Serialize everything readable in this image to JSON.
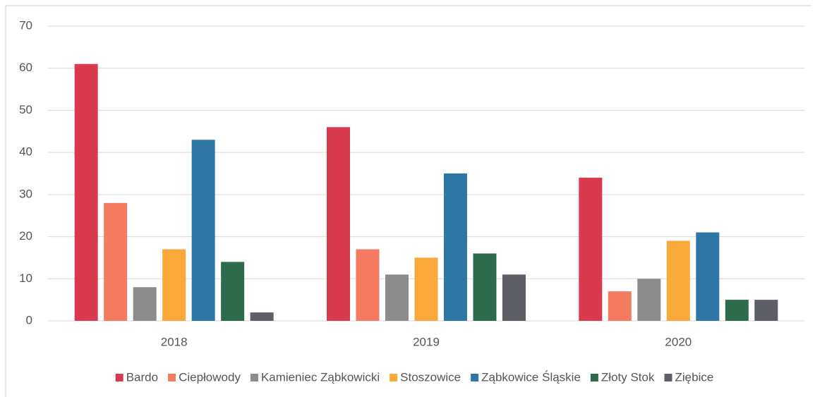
{
  "chart_data": {
    "type": "bar",
    "categories": [
      "2018",
      "2019",
      "2020"
    ],
    "series": [
      {
        "name": "Bardo",
        "color": "#d93a4e",
        "values": [
          61,
          46,
          34
        ]
      },
      {
        "name": "Ciepłowody",
        "color": "#f47a60",
        "values": [
          28,
          17,
          7
        ]
      },
      {
        "name": "Kamieniec Ząbkowicki",
        "color": "#8c8c8c",
        "values": [
          8,
          11,
          10
        ]
      },
      {
        "name": "Stoszowice",
        "color": "#f9a93a",
        "values": [
          17,
          15,
          19
        ]
      },
      {
        "name": "Ząbkowice Śląskie",
        "color": "#2e76a6",
        "values": [
          43,
          35,
          21
        ]
      },
      {
        "name": "Złoty Stok",
        "color": "#2e6a4c",
        "values": [
          14,
          16,
          5
        ]
      },
      {
        "name": "Ziębice",
        "color": "#5e5e66",
        "values": [
          2,
          11,
          5
        ]
      }
    ],
    "ylim": [
      0,
      70
    ],
    "yticks": [
      0,
      10,
      20,
      30,
      40,
      50,
      60,
      70
    ],
    "grid": true,
    "legend": "bottom"
  }
}
